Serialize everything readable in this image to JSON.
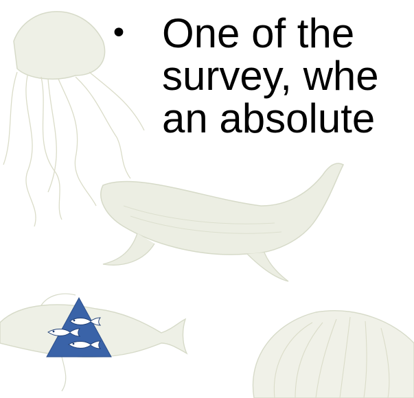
{
  "slide": {
    "bullet_marker": "•",
    "bullet_lines": [
      "One of the",
      "survey, whe",
      "an absolute"
    ]
  },
  "icons": {
    "logo": "fish-triangle-logo",
    "background": "marine-life-watermark"
  },
  "colors": {
    "logo_blue": "#3a63a8",
    "watermark": "#d8dccb",
    "text": "#000000"
  }
}
